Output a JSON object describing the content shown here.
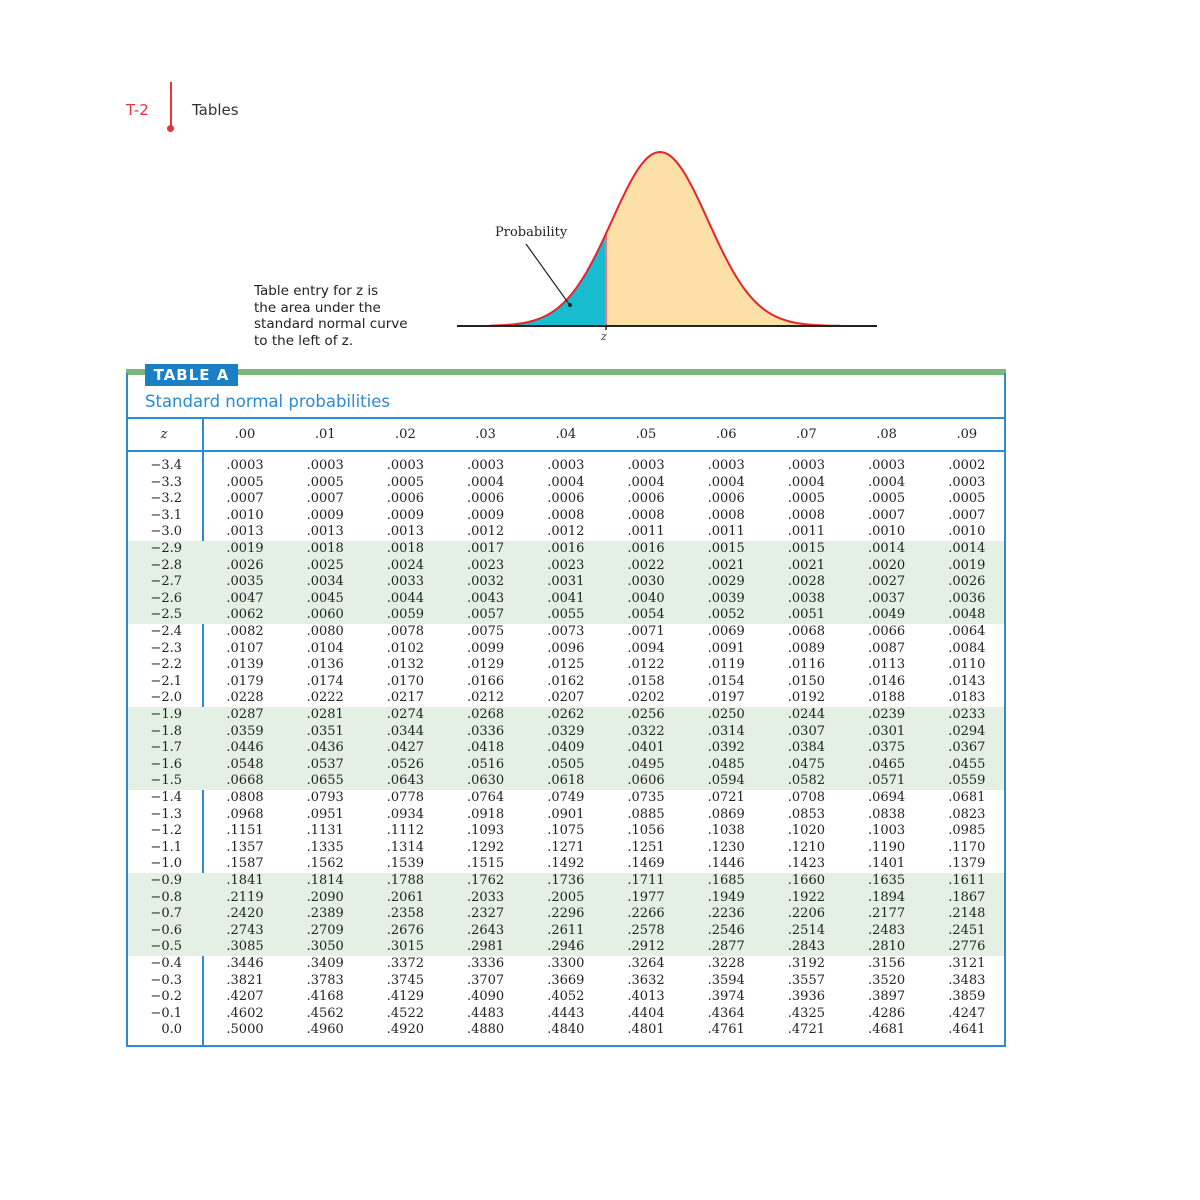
{
  "header": {
    "page_number": "T-2",
    "section": "Tables"
  },
  "figure": {
    "caption_lines": [
      "Table entry for z is",
      "the area under the",
      "standard normal curve",
      "to the left of z."
    ],
    "probability_label": "Probability",
    "z_label": "z",
    "colors": {
      "left_area": "#17bcd0",
      "right_area": "#fde0a8",
      "curve": "#e8232c"
    }
  },
  "table": {
    "tag": "TABLE A",
    "title": "Standard normal probabilities",
    "z_header": "z",
    "columns": [
      ".00",
      ".01",
      ".02",
      ".03",
      ".04",
      ".05",
      ".06",
      ".07",
      ".08",
      ".09"
    ],
    "shaded_row_groups": [
      [
        "−2.9",
        "−2.5"
      ],
      [
        "−1.9",
        "−1.5"
      ],
      [
        "−0.9",
        "−0.5"
      ]
    ],
    "rows": [
      {
        "z": "−3.4",
        "v": [
          ".0003",
          ".0003",
          ".0003",
          ".0003",
          ".0003",
          ".0003",
          ".0003",
          ".0003",
          ".0003",
          ".0002"
        ]
      },
      {
        "z": "−3.3",
        "v": [
          ".0005",
          ".0005",
          ".0005",
          ".0004",
          ".0004",
          ".0004",
          ".0004",
          ".0004",
          ".0004",
          ".0003"
        ]
      },
      {
        "z": "−3.2",
        "v": [
          ".0007",
          ".0007",
          ".0006",
          ".0006",
          ".0006",
          ".0006",
          ".0006",
          ".0005",
          ".0005",
          ".0005"
        ]
      },
      {
        "z": "−3.1",
        "v": [
          ".0010",
          ".0009",
          ".0009",
          ".0009",
          ".0008",
          ".0008",
          ".0008",
          ".0008",
          ".0007",
          ".0007"
        ]
      },
      {
        "z": "−3.0",
        "v": [
          ".0013",
          ".0013",
          ".0013",
          ".0012",
          ".0012",
          ".0011",
          ".0011",
          ".0011",
          ".0010",
          ".0010"
        ]
      },
      {
        "z": "−2.9",
        "v": [
          ".0019",
          ".0018",
          ".0018",
          ".0017",
          ".0016",
          ".0016",
          ".0015",
          ".0015",
          ".0014",
          ".0014"
        ]
      },
      {
        "z": "−2.8",
        "v": [
          ".0026",
          ".0025",
          ".0024",
          ".0023",
          ".0023",
          ".0022",
          ".0021",
          ".0021",
          ".0020",
          ".0019"
        ]
      },
      {
        "z": "−2.7",
        "v": [
          ".0035",
          ".0034",
          ".0033",
          ".0032",
          ".0031",
          ".0030",
          ".0029",
          ".0028",
          ".0027",
          ".0026"
        ]
      },
      {
        "z": "−2.6",
        "v": [
          ".0047",
          ".0045",
          ".0044",
          ".0043",
          ".0041",
          ".0040",
          ".0039",
          ".0038",
          ".0037",
          ".0036"
        ]
      },
      {
        "z": "−2.5",
        "v": [
          ".0062",
          ".0060",
          ".0059",
          ".0057",
          ".0055",
          ".0054",
          ".0052",
          ".0051",
          ".0049",
          ".0048"
        ]
      },
      {
        "z": "−2.4",
        "v": [
          ".0082",
          ".0080",
          ".0078",
          ".0075",
          ".0073",
          ".0071",
          ".0069",
          ".0068",
          ".0066",
          ".0064"
        ]
      },
      {
        "z": "−2.3",
        "v": [
          ".0107",
          ".0104",
          ".0102",
          ".0099",
          ".0096",
          ".0094",
          ".0091",
          ".0089",
          ".0087",
          ".0084"
        ]
      },
      {
        "z": "−2.2",
        "v": [
          ".0139",
          ".0136",
          ".0132",
          ".0129",
          ".0125",
          ".0122",
          ".0119",
          ".0116",
          ".0113",
          ".0110"
        ]
      },
      {
        "z": "−2.1",
        "v": [
          ".0179",
          ".0174",
          ".0170",
          ".0166",
          ".0162",
          ".0158",
          ".0154",
          ".0150",
          ".0146",
          ".0143"
        ]
      },
      {
        "z": "−2.0",
        "v": [
          ".0228",
          ".0222",
          ".0217",
          ".0212",
          ".0207",
          ".0202",
          ".0197",
          ".0192",
          ".0188",
          ".0183"
        ]
      },
      {
        "z": "−1.9",
        "v": [
          ".0287",
          ".0281",
          ".0274",
          ".0268",
          ".0262",
          ".0256",
          ".0250",
          ".0244",
          ".0239",
          ".0233"
        ]
      },
      {
        "z": "−1.8",
        "v": [
          ".0359",
          ".0351",
          ".0344",
          ".0336",
          ".0329",
          ".0322",
          ".0314",
          ".0307",
          ".0301",
          ".0294"
        ]
      },
      {
        "z": "−1.7",
        "v": [
          ".0446",
          ".0436",
          ".0427",
          ".0418",
          ".0409",
          ".0401",
          ".0392",
          ".0384",
          ".0375",
          ".0367"
        ]
      },
      {
        "z": "−1.6",
        "v": [
          ".0548",
          ".0537",
          ".0526",
          ".0516",
          ".0505",
          ".0495",
          ".0485",
          ".0475",
          ".0465",
          ".0455"
        ]
      },
      {
        "z": "−1.5",
        "v": [
          ".0668",
          ".0655",
          ".0643",
          ".0630",
          ".0618",
          ".0606",
          ".0594",
          ".0582",
          ".0571",
          ".0559"
        ]
      },
      {
        "z": "−1.4",
        "v": [
          ".0808",
          ".0793",
          ".0778",
          ".0764",
          ".0749",
          ".0735",
          ".0721",
          ".0708",
          ".0694",
          ".0681"
        ]
      },
      {
        "z": "−1.3",
        "v": [
          ".0968",
          ".0951",
          ".0934",
          ".0918",
          ".0901",
          ".0885",
          ".0869",
          ".0853",
          ".0838",
          ".0823"
        ]
      },
      {
        "z": "−1.2",
        "v": [
          ".1151",
          ".1131",
          ".1112",
          ".1093",
          ".1075",
          ".1056",
          ".1038",
          ".1020",
          ".1003",
          ".0985"
        ]
      },
      {
        "z": "−1.1",
        "v": [
          ".1357",
          ".1335",
          ".1314",
          ".1292",
          ".1271",
          ".1251",
          ".1230",
          ".1210",
          ".1190",
          ".1170"
        ]
      },
      {
        "z": "−1.0",
        "v": [
          ".1587",
          ".1562",
          ".1539",
          ".1515",
          ".1492",
          ".1469",
          ".1446",
          ".1423",
          ".1401",
          ".1379"
        ]
      },
      {
        "z": "−0.9",
        "v": [
          ".1841",
          ".1814",
          ".1788",
          ".1762",
          ".1736",
          ".1711",
          ".1685",
          ".1660",
          ".1635",
          ".1611"
        ]
      },
      {
        "z": "−0.8",
        "v": [
          ".2119",
          ".2090",
          ".2061",
          ".2033",
          ".2005",
          ".1977",
          ".1949",
          ".1922",
          ".1894",
          ".1867"
        ]
      },
      {
        "z": "−0.7",
        "v": [
          ".2420",
          ".2389",
          ".2358",
          ".2327",
          ".2296",
          ".2266",
          ".2236",
          ".2206",
          ".2177",
          ".2148"
        ]
      },
      {
        "z": "−0.6",
        "v": [
          ".2743",
          ".2709",
          ".2676",
          ".2643",
          ".2611",
          ".2578",
          ".2546",
          ".2514",
          ".2483",
          ".2451"
        ]
      },
      {
        "z": "−0.5",
        "v": [
          ".3085",
          ".3050",
          ".3015",
          ".2981",
          ".2946",
          ".2912",
          ".2877",
          ".2843",
          ".2810",
          ".2776"
        ]
      },
      {
        "z": "−0.4",
        "v": [
          ".3446",
          ".3409",
          ".3372",
          ".3336",
          ".3300",
          ".3264",
          ".3228",
          ".3192",
          ".3156",
          ".3121"
        ]
      },
      {
        "z": "−0.3",
        "v": [
          ".3821",
          ".3783",
          ".3745",
          ".3707",
          ".3669",
          ".3632",
          ".3594",
          ".3557",
          ".3520",
          ".3483"
        ]
      },
      {
        "z": "−0.2",
        "v": [
          ".4207",
          ".4168",
          ".4129",
          ".4090",
          ".4052",
          ".4013",
          ".3974",
          ".3936",
          ".3897",
          ".3859"
        ]
      },
      {
        "z": "−0.1",
        "v": [
          ".4602",
          ".4562",
          ".4522",
          ".4483",
          ".4443",
          ".4404",
          ".4364",
          ".4325",
          ".4286",
          ".4247"
        ]
      },
      {
        "z": "0.0",
        "v": [
          ".5000",
          ".4960",
          ".4920",
          ".4880",
          ".4840",
          ".4801",
          ".4761",
          ".4721",
          ".4681",
          ".4641"
        ]
      }
    ]
  }
}
